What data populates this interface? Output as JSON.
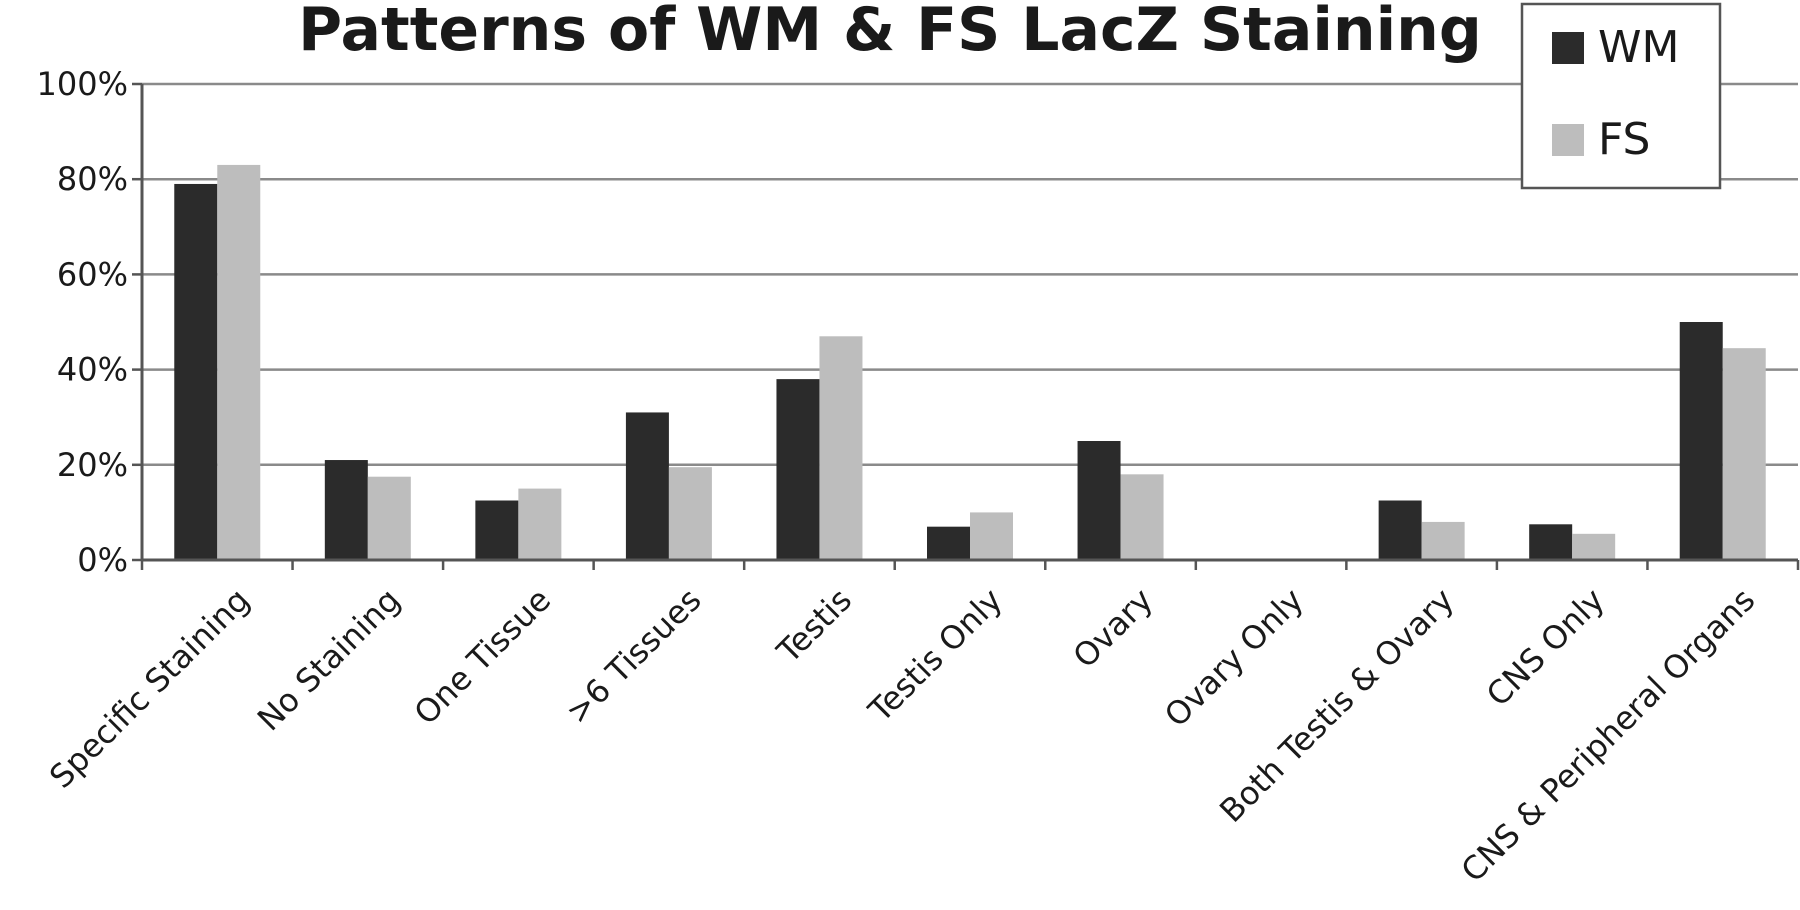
{
  "chart_data": {
    "type": "bar",
    "title": "Patterns of WM & FS LacZ Staining",
    "xlabel": "",
    "ylabel": "",
    "ylim": [
      0,
      100
    ],
    "y_tick_values": [
      0,
      20,
      40,
      60,
      80,
      100
    ],
    "y_tick_labels": [
      "0%",
      "20%",
      "40%",
      "60%",
      "80%",
      "100%"
    ],
    "categories": [
      "Specific Staining",
      "No Staining",
      "One Tissue",
      ">6 Tissues",
      "Testis",
      "Testis Only",
      "Ovary",
      "Ovary Only",
      "Both Testis & Ovary",
      "CNS Only",
      "CNS & Peripheral Organs"
    ],
    "series": [
      {
        "name": "WM",
        "color": "#2b2b2b",
        "values": [
          79,
          21,
          12.5,
          31,
          38,
          7,
          25,
          0,
          12.5,
          7.5,
          50
        ]
      },
      {
        "name": "FS",
        "color": "#bdbdbd",
        "values": [
          83,
          17.5,
          15,
          19.5,
          47,
          10,
          18,
          0,
          8,
          5.5,
          44.5
        ]
      }
    ],
    "grid": true,
    "legend_position": "top-right"
  }
}
